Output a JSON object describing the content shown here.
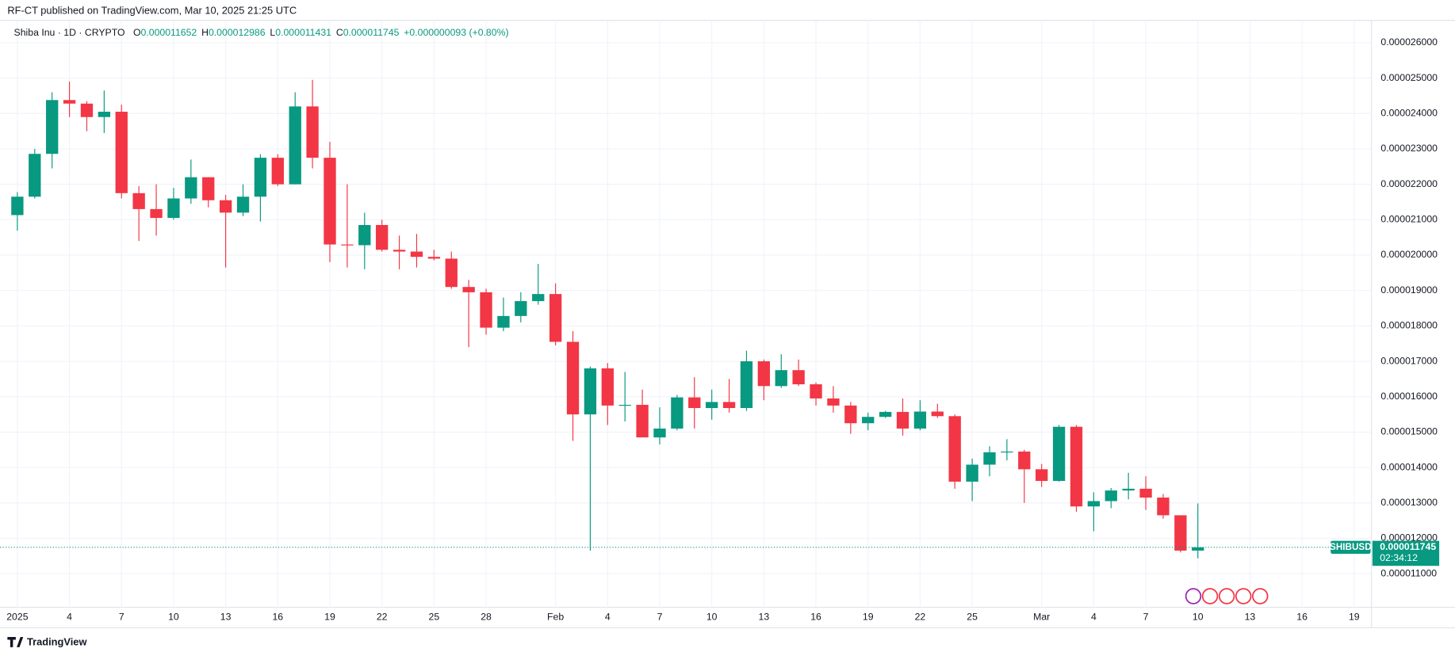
{
  "header": {
    "published": "RF-CT published on TradingView.com, Mar 10, 2025 21:25 UTC",
    "instrument": "Shiba Inu · 1D · CRYPTO",
    "ohlc": [
      {
        "label": "O",
        "value": "0.000011652"
      },
      {
        "label": "H",
        "value": "0.000012986"
      },
      {
        "label": "L",
        "value": "0.000011431"
      },
      {
        "label": "C",
        "value": "0.000011745"
      }
    ],
    "change": "+0.000000093 (+0.80%)",
    "brand": "TradingView"
  },
  "price_tag": {
    "symbol": "SHIBUSD",
    "price": "0.000011745",
    "countdown": "02:34:12"
  },
  "chart_data": {
    "type": "candlestick",
    "up_color": "#089981",
    "down_color": "#f23645",
    "grid": true,
    "x": [
      "2025-01-01",
      "2025-01-02",
      "2025-01-03",
      "2025-01-04",
      "2025-01-05",
      "2025-01-06",
      "2025-01-07",
      "2025-01-08",
      "2025-01-09",
      "2025-01-10",
      "2025-01-11",
      "2025-01-12",
      "2025-01-13",
      "2025-01-14",
      "2025-01-15",
      "2025-01-16",
      "2025-01-17",
      "2025-01-18",
      "2025-01-19",
      "2025-01-20",
      "2025-01-21",
      "2025-01-22",
      "2025-01-23",
      "2025-01-24",
      "2025-01-25",
      "2025-01-26",
      "2025-01-27",
      "2025-01-28",
      "2025-01-29",
      "2025-01-30",
      "2025-01-31",
      "2025-02-01",
      "2025-02-02",
      "2025-02-03",
      "2025-02-04",
      "2025-02-05",
      "2025-02-06",
      "2025-02-07",
      "2025-02-08",
      "2025-02-09",
      "2025-02-10",
      "2025-02-11",
      "2025-02-12",
      "2025-02-13",
      "2025-02-14",
      "2025-02-15",
      "2025-02-16",
      "2025-02-17",
      "2025-02-18",
      "2025-02-19",
      "2025-02-20",
      "2025-02-21",
      "2025-02-22",
      "2025-02-23",
      "2025-02-24",
      "2025-02-25",
      "2025-02-26",
      "2025-02-27",
      "2025-02-28",
      "2025-03-01",
      "2025-03-02",
      "2025-03-03",
      "2025-03-04",
      "2025-03-05",
      "2025-03-06",
      "2025-03-07",
      "2025-03-08",
      "2025-03-09",
      "2025-03-10"
    ],
    "open": [
      2.113e-05,
      2.165e-05,
      2.286e-05,
      2.438e-05,
      2.428e-05,
      2.39e-05,
      2.405e-05,
      2.175e-05,
      2.13e-05,
      2.105e-05,
      2.16e-05,
      2.22e-05,
      2.155e-05,
      2.12e-05,
      2.165e-05,
      2.275e-05,
      2.2e-05,
      2.42e-05,
      2.275e-05,
      2.03e-05,
      2.028e-05,
      2.085e-05,
      2.015e-05,
      2.01e-05,
      1.995e-05,
      1.99e-05,
      1.91e-05,
      1.895e-05,
      1.795e-05,
      1.828e-05,
      1.87e-05,
      1.89e-05,
      1.755e-05,
      1.55e-05,
      1.68e-05,
      1.575e-05,
      1.577e-05,
      1.485e-05,
      1.51e-05,
      1.598e-05,
      1.568e-05,
      1.585e-05,
      1.568e-05,
      1.7e-05,
      1.63e-05,
      1.675e-05,
      1.635e-05,
      1.595e-05,
      1.575e-05,
      1.525e-05,
      1.543e-05,
      1.557e-05,
      1.51e-05,
      1.558e-05,
      1.545e-05,
      1.36e-05,
      1.408e-05,
      1.443e-05,
      1.445e-05,
      1.395e-05,
      1.362e-05,
      1.515e-05,
      1.29e-05,
      1.305e-05,
      1.335e-05,
      1.34e-05,
      1.315e-05,
      1.265e-05,
      1.1652e-05
    ],
    "high": [
      2.178e-05,
      2.3e-05,
      2.46e-05,
      2.49e-05,
      2.435e-05,
      2.465e-05,
      2.425e-05,
      2.195e-05,
      2.2e-05,
      2.19e-05,
      2.27e-05,
      2.22e-05,
      2.17e-05,
      2.2e-05,
      2.285e-05,
      2.285e-05,
      2.46e-05,
      2.495e-05,
      2.32e-05,
      2.2e-05,
      2.12e-05,
      2.1e-05,
      2.055e-05,
      2.06e-05,
      2.015e-05,
      2.01e-05,
      1.93e-05,
      1.905e-05,
      1.88e-05,
      1.895e-05,
      1.975e-05,
      1.92e-05,
      1.785e-05,
      1.685e-05,
      1.695e-05,
      1.67e-05,
      1.62e-05,
      1.57e-05,
      1.605e-05,
      1.655e-05,
      1.62e-05,
      1.65e-05,
      1.73e-05,
      1.705e-05,
      1.72e-05,
      1.705e-05,
      1.64e-05,
      1.63e-05,
      1.585e-05,
      1.555e-05,
      1.56e-05,
      1.595e-05,
      1.59e-05,
      1.58e-05,
      1.55e-05,
      1.425e-05,
      1.46e-05,
      1.48e-05,
      1.45e-05,
      1.41e-05,
      1.52e-05,
      1.52e-05,
      1.33e-05,
      1.342e-05,
      1.385e-05,
      1.375e-05,
      1.325e-05,
      1.265e-05,
      1.2986e-05
    ],
    "low": [
      2.069e-05,
      2.16e-05,
      2.245e-05,
      2.39e-05,
      2.35e-05,
      2.345e-05,
      2.16e-05,
      2.04e-05,
      2.055e-05,
      2.1e-05,
      2.145e-05,
      2.135e-05,
      1.965e-05,
      2.11e-05,
      2.095e-05,
      2.195e-05,
      2.2e-05,
      2.245e-05,
      1.98e-05,
      1.965e-05,
      1.96e-05,
      2.01e-05,
      1.96e-05,
      1.965e-05,
      1.985e-05,
      1.905e-05,
      1.74e-05,
      1.775e-05,
      1.785e-05,
      1.81e-05,
      1.86e-05,
      1.745e-05,
      1.475e-05,
      1.165e-05,
      1.52e-05,
      1.53e-05,
      1.485e-05,
      1.465e-05,
      1.505e-05,
      1.51e-05,
      1.535e-05,
      1.555e-05,
      1.56e-05,
      1.59e-05,
      1.625e-05,
      1.63e-05,
      1.575e-05,
      1.555e-05,
      1.495e-05,
      1.505e-05,
      1.54e-05,
      1.49e-05,
      1.505e-05,
      1.54e-05,
      1.34e-05,
      1.305e-05,
      1.375e-05,
      1.42e-05,
      1.3e-05,
      1.345e-05,
      1.36e-05,
      1.275e-05,
      1.22e-05,
      1.285e-05,
      1.31e-05,
      1.28e-05,
      1.255e-05,
      1.16e-05,
      1.1431e-05
    ],
    "close": [
      2.165e-05,
      2.286e-05,
      2.438e-05,
      2.428e-05,
      2.39e-05,
      2.405e-05,
      2.175e-05,
      2.13e-05,
      2.105e-05,
      2.16e-05,
      2.22e-05,
      2.155e-05,
      2.12e-05,
      2.165e-05,
      2.275e-05,
      2.2e-05,
      2.42e-05,
      2.275e-05,
      2.03e-05,
      2.028e-05,
      2.085e-05,
      2.015e-05,
      2.01e-05,
      1.995e-05,
      1.99e-05,
      1.91e-05,
      1.895e-05,
      1.795e-05,
      1.828e-05,
      1.87e-05,
      1.89e-05,
      1.755e-05,
      1.55e-05,
      1.68e-05,
      1.575e-05,
      1.577e-05,
      1.485e-05,
      1.51e-05,
      1.598e-05,
      1.568e-05,
      1.585e-05,
      1.568e-05,
      1.7e-05,
      1.63e-05,
      1.675e-05,
      1.635e-05,
      1.595e-05,
      1.575e-05,
      1.525e-05,
      1.543e-05,
      1.557e-05,
      1.51e-05,
      1.558e-05,
      1.545e-05,
      1.36e-05,
      1.408e-05,
      1.443e-05,
      1.445e-05,
      1.395e-05,
      1.362e-05,
      1.515e-05,
      1.29e-05,
      1.305e-05,
      1.335e-05,
      1.34e-05,
      1.315e-05,
      1.265e-05,
      1.1652e-05,
      1.1745e-05
    ],
    "xlim": [
      "2024-12-31",
      "2025-03-20"
    ],
    "xticks": [
      {
        "value": "2025-01-01",
        "label": "2025"
      },
      {
        "value": "2025-01-04",
        "label": "4"
      },
      {
        "value": "2025-01-07",
        "label": "7"
      },
      {
        "value": "2025-01-10",
        "label": "10"
      },
      {
        "value": "2025-01-13",
        "label": "13"
      },
      {
        "value": "2025-01-16",
        "label": "16"
      },
      {
        "value": "2025-01-19",
        "label": "19"
      },
      {
        "value": "2025-01-22",
        "label": "22"
      },
      {
        "value": "2025-01-25",
        "label": "25"
      },
      {
        "value": "2025-01-28",
        "label": "28"
      },
      {
        "value": "2025-02-01",
        "label": "Feb"
      },
      {
        "value": "2025-02-04",
        "label": "4"
      },
      {
        "value": "2025-02-07",
        "label": "7"
      },
      {
        "value": "2025-02-10",
        "label": "10"
      },
      {
        "value": "2025-02-13",
        "label": "13"
      },
      {
        "value": "2025-02-16",
        "label": "16"
      },
      {
        "value": "2025-02-19",
        "label": "19"
      },
      {
        "value": "2025-02-22",
        "label": "22"
      },
      {
        "value": "2025-02-25",
        "label": "25"
      },
      {
        "value": "2025-03-01",
        "label": "Mar"
      },
      {
        "value": "2025-03-04",
        "label": "4"
      },
      {
        "value": "2025-03-07",
        "label": "7"
      },
      {
        "value": "2025-03-10",
        "label": "10"
      },
      {
        "value": "2025-03-13",
        "label": "13"
      },
      {
        "value": "2025-03-16",
        "label": "16"
      },
      {
        "value": "2025-03-19",
        "label": "19"
      }
    ],
    "ylim": [
      1.005e-05,
      2.663e-05
    ],
    "yticks": [
      {
        "value": 1.1e-05,
        "label": "0.000011000"
      },
      {
        "value": 1.2e-05,
        "label": "0.000012000"
      },
      {
        "value": 1.3e-05,
        "label": "0.000013000"
      },
      {
        "value": 1.4e-05,
        "label": "0.000014000"
      },
      {
        "value": 1.5e-05,
        "label": "0.000015000"
      },
      {
        "value": 1.6e-05,
        "label": "0.000016000"
      },
      {
        "value": 1.7e-05,
        "label": "0.000017000"
      },
      {
        "value": 1.8e-05,
        "label": "0.000018000"
      },
      {
        "value": 1.9e-05,
        "label": "0.000019000"
      },
      {
        "value": 2e-05,
        "label": "0.000020000"
      },
      {
        "value": 2.1e-05,
        "label": "0.000021000"
      },
      {
        "value": 2.2e-05,
        "label": "0.000022000"
      },
      {
        "value": 2.3e-05,
        "label": "0.000023000"
      },
      {
        "value": 2.4e-05,
        "label": "0.000024000"
      },
      {
        "value": 2.5e-05,
        "label": "0.000025000"
      },
      {
        "value": 2.6e-05,
        "label": "0.000026000"
      }
    ]
  }
}
